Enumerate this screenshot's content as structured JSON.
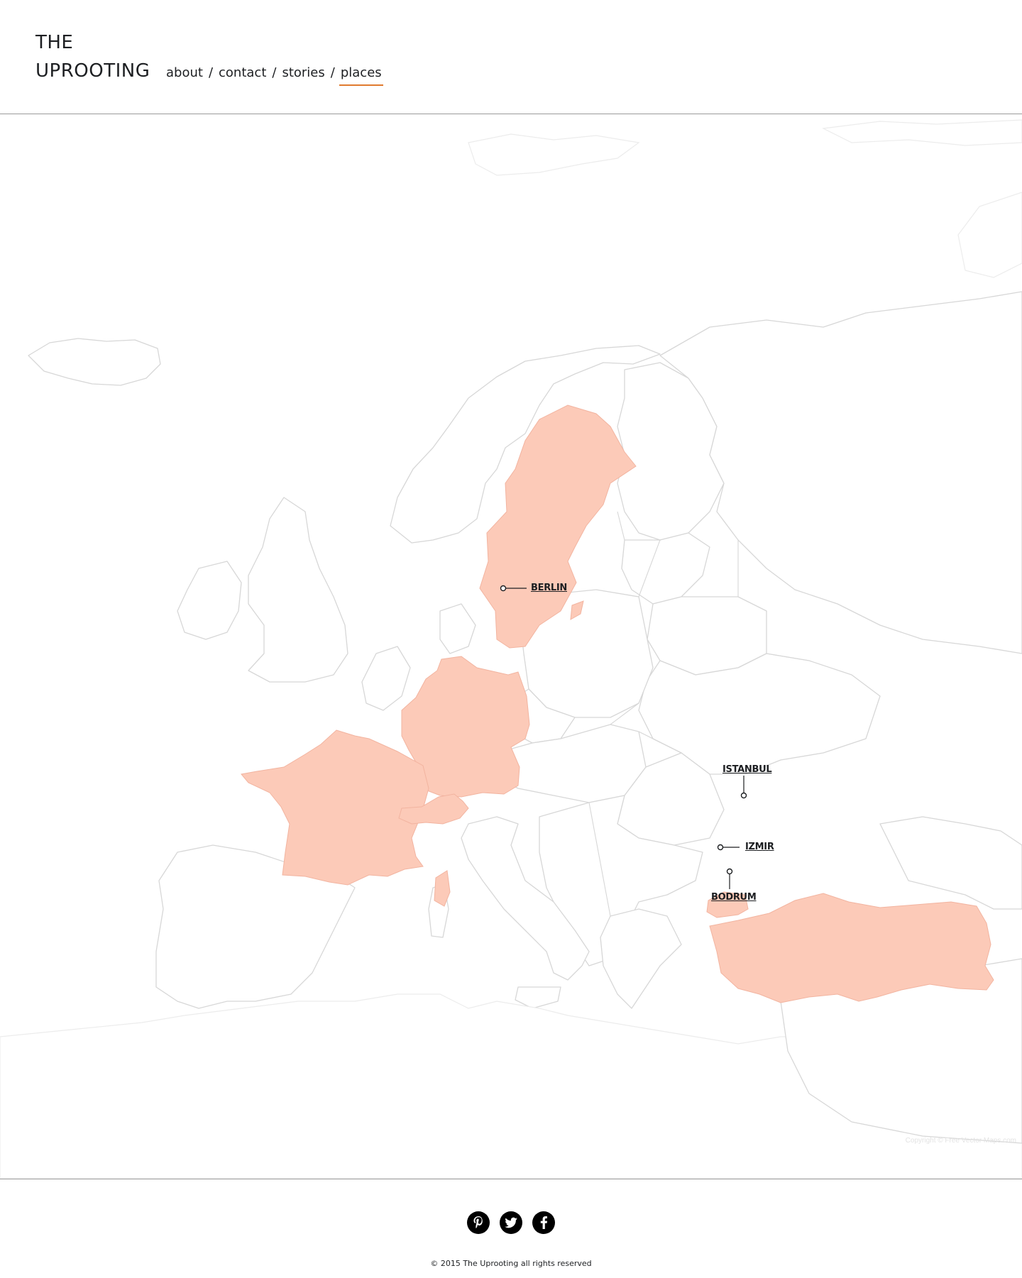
{
  "header": {
    "brand_line1": "THE",
    "brand_line2": "UPROOTING",
    "nav": [
      {
        "label": "about"
      },
      {
        "label": "contact"
      },
      {
        "label": "stories"
      },
      {
        "label": "places",
        "active": true
      }
    ],
    "separator": "/",
    "accent_color": "#e07a2f"
  },
  "map": {
    "highlight_color": "#fccab8",
    "highlighted_countries": [
      "Sweden",
      "Germany",
      "France",
      "Switzerland",
      "Corsica",
      "Turkey"
    ],
    "cities": [
      {
        "name": "BERLIN"
      },
      {
        "name": "ISTANBUL"
      },
      {
        "name": "IZMIR"
      },
      {
        "name": "BODRUM"
      }
    ],
    "copyright": "Copyright © Free Vector Maps.com"
  },
  "footer": {
    "social": [
      {
        "name": "pinterest-icon",
        "glyph": "P"
      },
      {
        "name": "twitter-icon",
        "glyph": "t"
      },
      {
        "name": "facebook-icon",
        "glyph": "f"
      }
    ],
    "copyright": "© 2015 The Uprooting all rights reserved"
  }
}
